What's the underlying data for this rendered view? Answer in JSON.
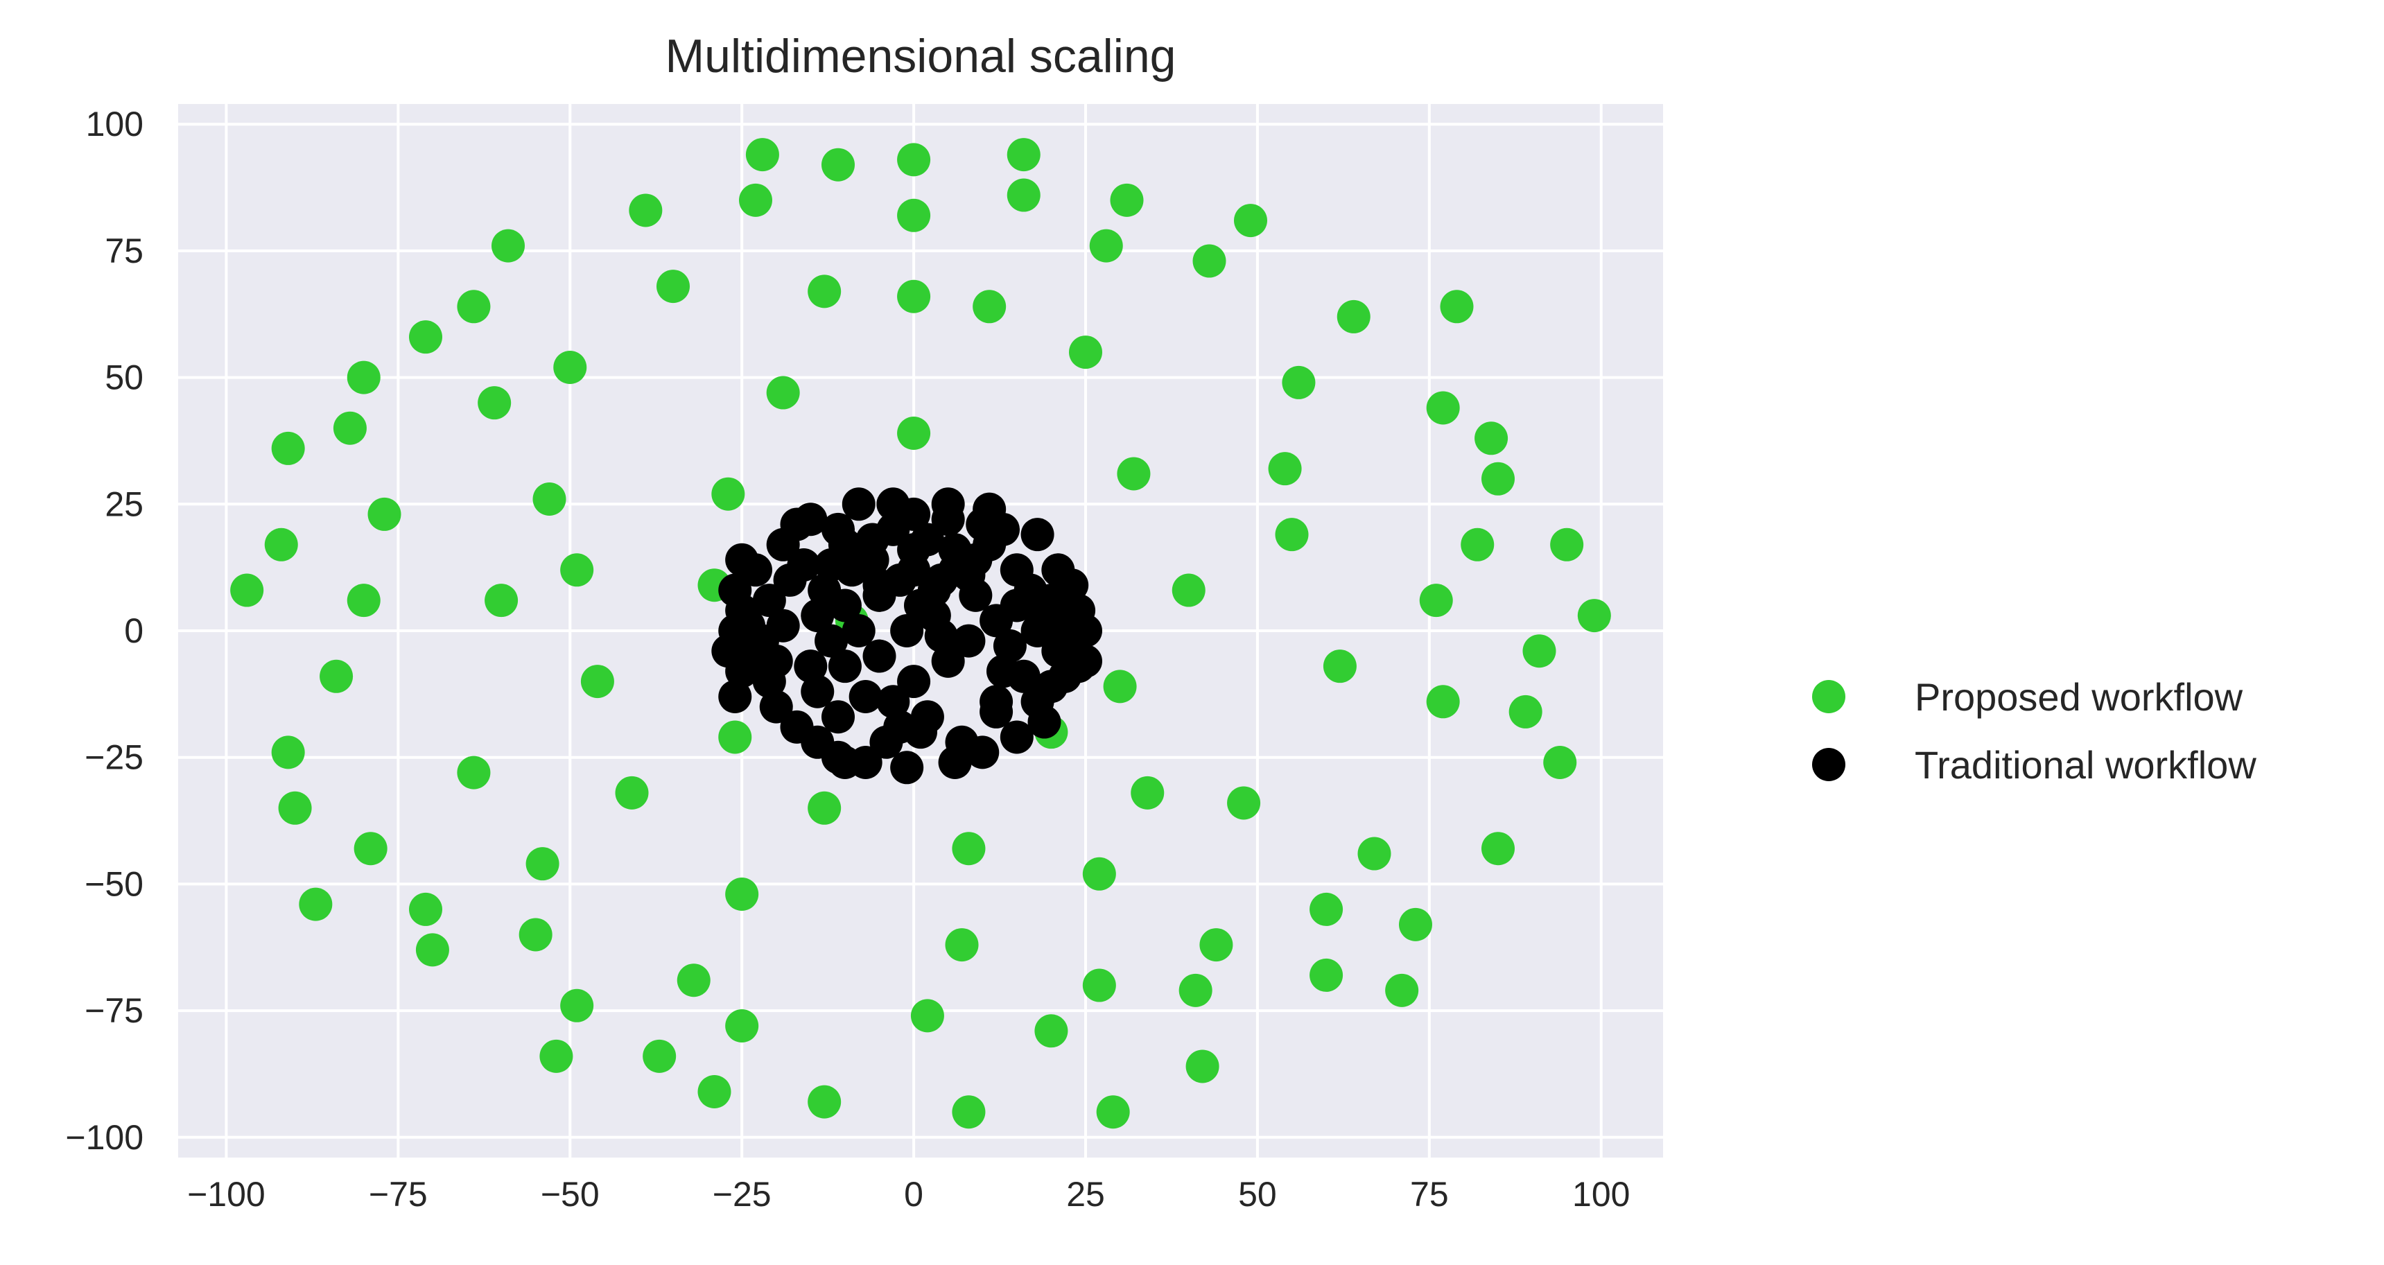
{
  "chart_data": {
    "type": "scatter",
    "title": "Multidimensional scaling",
    "xlabel": "",
    "ylabel": "",
    "xlim": [
      -107,
      109
    ],
    "ylim": [
      -104,
      104
    ],
    "xticks": [
      -100,
      -75,
      -50,
      -25,
      0,
      25,
      50,
      75,
      100
    ],
    "yticks": [
      -100,
      -75,
      -50,
      -25,
      0,
      25,
      50,
      75,
      100
    ],
    "xtick_labels": [
      "−100",
      "−75",
      "−50",
      "−25",
      "0",
      "25",
      "50",
      "75",
      "100"
    ],
    "ytick_labels": [
      "−100",
      "−75",
      "−50",
      "−25",
      "0",
      "25",
      "50",
      "75",
      "100"
    ],
    "grid": true,
    "legend_position": "right",
    "background": "#eaeaf2",
    "series": [
      {
        "name": "Proposed workflow",
        "color": "#32cd32",
        "points": [
          [
            -97,
            8
          ],
          [
            -92,
            17
          ],
          [
            -91,
            36
          ],
          [
            -91,
            -24
          ],
          [
            -90,
            -35
          ],
          [
            -87,
            -54
          ],
          [
            -84,
            -9
          ],
          [
            -82,
            40
          ],
          [
            -80,
            50
          ],
          [
            -80,
            6
          ],
          [
            -79,
            -43
          ],
          [
            -77,
            23
          ],
          [
            -71,
            58
          ],
          [
            -71,
            -55
          ],
          [
            -70,
            -63
          ],
          [
            -64,
            64
          ],
          [
            -64,
            -28
          ],
          [
            -61,
            45
          ],
          [
            -60,
            6
          ],
          [
            -59,
            76
          ],
          [
            -55,
            -60
          ],
          [
            -54,
            -46
          ],
          [
            -53,
            26
          ],
          [
            -52,
            -84
          ],
          [
            -50,
            52
          ],
          [
            -49,
            -74
          ],
          [
            -49,
            12
          ],
          [
            -46,
            -10
          ],
          [
            -41,
            -32
          ],
          [
            -39,
            83
          ],
          [
            -37,
            -84
          ],
          [
            -35,
            68
          ],
          [
            -32,
            -69
          ],
          [
            -29,
            -91
          ],
          [
            -29,
            9
          ],
          [
            -27,
            27
          ],
          [
            -26,
            -21
          ],
          [
            -25,
            -52
          ],
          [
            -25,
            -78
          ],
          [
            -23,
            85
          ],
          [
            -22,
            94
          ],
          [
            -19,
            47
          ],
          [
            -13,
            67
          ],
          [
            -13,
            -35
          ],
          [
            -13,
            -93
          ],
          [
            -11,
            92
          ],
          [
            -9,
            2
          ],
          [
            0,
            93
          ],
          [
            0,
            82
          ],
          [
            0,
            66
          ],
          [
            0,
            39
          ],
          [
            2,
            -76
          ],
          [
            7,
            -62
          ],
          [
            8,
            -43
          ],
          [
            8,
            -95
          ],
          [
            11,
            64
          ],
          [
            16,
            86
          ],
          [
            16,
            94
          ],
          [
            20,
            -20
          ],
          [
            20,
            -79
          ],
          [
            25,
            55
          ],
          [
            27,
            -48
          ],
          [
            27,
            -70
          ],
          [
            28,
            76
          ],
          [
            29,
            -95
          ],
          [
            30,
            -11
          ],
          [
            31,
            85
          ],
          [
            32,
            31
          ],
          [
            34,
            -32
          ],
          [
            40,
            8
          ],
          [
            41,
            -71
          ],
          [
            42,
            -86
          ],
          [
            43,
            73
          ],
          [
            44,
            -62
          ],
          [
            48,
            -34
          ],
          [
            49,
            81
          ],
          [
            54,
            32
          ],
          [
            55,
            19
          ],
          [
            56,
            49
          ],
          [
            60,
            -55
          ],
          [
            60,
            -68
          ],
          [
            62,
            -7
          ],
          [
            64,
            62
          ],
          [
            67,
            -44
          ],
          [
            71,
            -71
          ],
          [
            73,
            -58
          ],
          [
            76,
            6
          ],
          [
            77,
            44
          ],
          [
            77,
            -14
          ],
          [
            79,
            64
          ],
          [
            82,
            17
          ],
          [
            84,
            38
          ],
          [
            85,
            30
          ],
          [
            85,
            -43
          ],
          [
            89,
            -16
          ],
          [
            91,
            -4
          ],
          [
            94,
            -26
          ],
          [
            95,
            17
          ],
          [
            99,
            3
          ]
        ]
      },
      {
        "name": "Traditional workflow",
        "color": "#000000",
        "points": [
          [
            -27,
            -4
          ],
          [
            -26,
            0
          ],
          [
            -26,
            8
          ],
          [
            -26,
            -13
          ],
          [
            -25,
            4
          ],
          [
            -25,
            14
          ],
          [
            -25,
            -8
          ],
          [
            -24,
            1
          ],
          [
            -24,
            -5
          ],
          [
            -23,
            12
          ],
          [
            -22,
            -2
          ],
          [
            -21,
            6
          ],
          [
            -21,
            -10
          ],
          [
            -20,
            -15
          ],
          [
            -20,
            -6
          ],
          [
            -19,
            17
          ],
          [
            -19,
            1
          ],
          [
            -18,
            10
          ],
          [
            -17,
            21
          ],
          [
            -17,
            -19
          ],
          [
            -16,
            13
          ],
          [
            -15,
            22
          ],
          [
            -15,
            -7
          ],
          [
            -14,
            3
          ],
          [
            -14,
            -12
          ],
          [
            -14,
            -22
          ],
          [
            -13,
            8
          ],
          [
            -12,
            13
          ],
          [
            -12,
            -2
          ],
          [
            -11,
            20
          ],
          [
            -11,
            -25
          ],
          [
            -11,
            -17
          ],
          [
            -10,
            17
          ],
          [
            -10,
            -7
          ],
          [
            -10,
            5
          ],
          [
            -10,
            -26
          ],
          [
            -9,
            12
          ],
          [
            -8,
            0
          ],
          [
            -8,
            25
          ],
          [
            -7,
            -13
          ],
          [
            -7,
            -26
          ],
          [
            -6,
            14
          ],
          [
            -6,
            18
          ],
          [
            -5,
            7
          ],
          [
            -5,
            -5
          ],
          [
            -5,
            9
          ],
          [
            -4,
            -22
          ],
          [
            -3,
            25
          ],
          [
            -3,
            20
          ],
          [
            -3,
            -14
          ],
          [
            -2,
            10
          ],
          [
            -2,
            -19
          ],
          [
            -1,
            -27
          ],
          [
            -1,
            0
          ],
          [
            0,
            23
          ],
          [
            0,
            16
          ],
          [
            0,
            -10
          ],
          [
            0,
            12
          ],
          [
            1,
            -20
          ],
          [
            1,
            5
          ],
          [
            2,
            18
          ],
          [
            2,
            -17
          ],
          [
            3,
            3
          ],
          [
            3,
            8
          ],
          [
            4,
            10
          ],
          [
            4,
            -1
          ],
          [
            5,
            22
          ],
          [
            5,
            25
          ],
          [
            5,
            -6
          ],
          [
            6,
            16
          ],
          [
            6,
            -26
          ],
          [
            6,
            12
          ],
          [
            7,
            -22
          ],
          [
            8,
            11
          ],
          [
            8,
            -2
          ],
          [
            9,
            14
          ],
          [
            9,
            7
          ],
          [
            10,
            21
          ],
          [
            10,
            -24
          ],
          [
            11,
            17
          ],
          [
            11,
            24
          ],
          [
            12,
            -16
          ],
          [
            12,
            2
          ],
          [
            12,
            -14
          ],
          [
            13,
            20
          ],
          [
            13,
            -8
          ],
          [
            14,
            -3
          ],
          [
            15,
            12
          ],
          [
            15,
            -21
          ],
          [
            15,
            5
          ],
          [
            16,
            -9
          ],
          [
            17,
            8
          ],
          [
            18,
            19
          ],
          [
            18,
            -14
          ],
          [
            18,
            0
          ],
          [
            19,
            -18
          ],
          [
            19,
            4
          ],
          [
            20,
            6
          ],
          [
            20,
            -11
          ],
          [
            21,
            12
          ],
          [
            21,
            -4
          ],
          [
            22,
            -9
          ],
          [
            22,
            1
          ],
          [
            23,
            9
          ],
          [
            23,
            -3
          ],
          [
            24,
            4
          ],
          [
            24,
            -7
          ],
          [
            25,
            0
          ],
          [
            25,
            -6
          ]
        ]
      }
    ]
  }
}
